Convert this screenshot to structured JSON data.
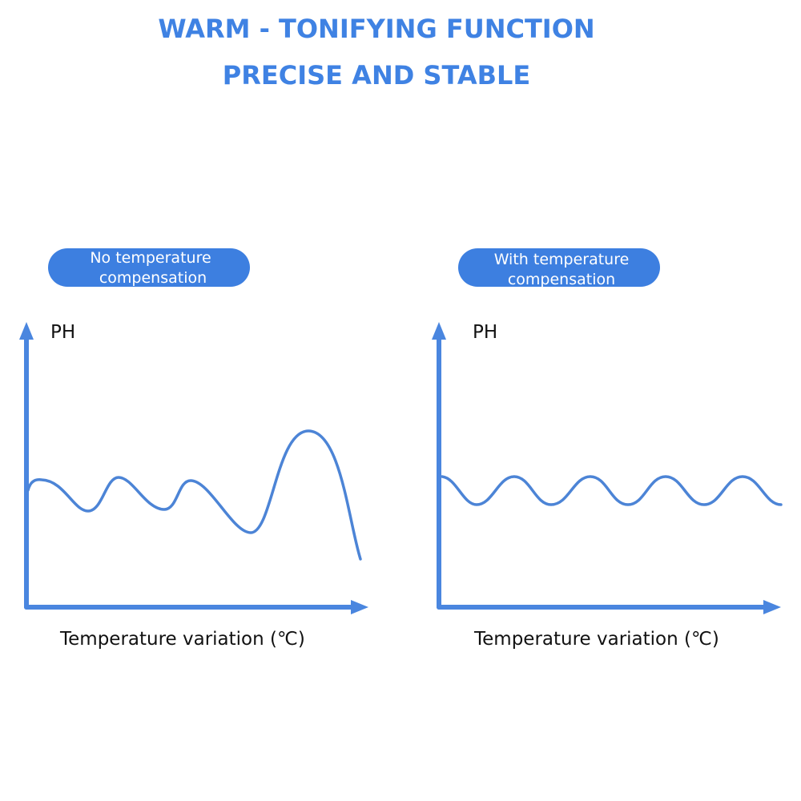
{
  "header": {
    "title": "WARM - TONIFYING FUNCTION",
    "subtitle": "PRECISE AND STABLE"
  },
  "panels": [
    {
      "badge": [
        "No temperature",
        "compensation"
      ],
      "y_label": "PH",
      "x_label": "Temperature variation (℃)"
    },
    {
      "badge": [
        "With temperature",
        "compensation"
      ],
      "y_label": "PH",
      "x_label": "Temperature variation (℃)"
    }
  ]
}
